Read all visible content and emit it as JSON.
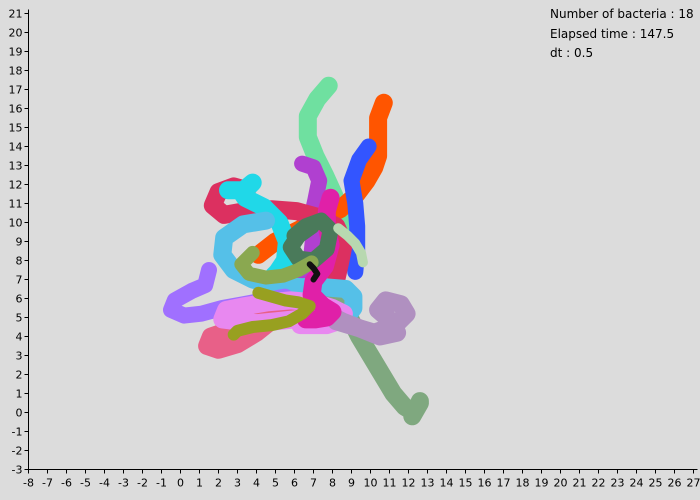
{
  "hud": {
    "bacteria_label": "Number of bacteria : 18",
    "time_label": "Elapsed time : 147.5",
    "dt_label": "dt : 0.5"
  },
  "colors": {
    "background": "#dcdcdc",
    "axis": "#000000"
  },
  "chart_data": {
    "type": "line",
    "title": "",
    "xlabel": "",
    "ylabel": "",
    "xlim": [
      -8,
      27
    ],
    "ylim": [
      -3,
      21
    ],
    "grid": false,
    "x_ticks": [
      -8,
      -7,
      -6,
      -5,
      -4,
      -3,
      -2,
      -1,
      0,
      1,
      2,
      3,
      4,
      5,
      6,
      7,
      8,
      9,
      10,
      11,
      12,
      13,
      14,
      15,
      16,
      17,
      18,
      19,
      20,
      21,
      22,
      23,
      24,
      25,
      26,
      27
    ],
    "y_ticks": [
      -3,
      -2,
      -1,
      0,
      1,
      2,
      3,
      4,
      5,
      6,
      7,
      8,
      9,
      10,
      11,
      12,
      13,
      14,
      15,
      16,
      17,
      18,
      19,
      20,
      21
    ],
    "series": [
      {
        "color": "#7fa87f",
        "width": 18,
        "x": [
          6.8,
          7.4,
          8.0,
          8.6,
          9.0,
          9.4,
          10.0,
          10.6,
          11.2,
          11.8,
          12.3,
          12.6,
          12.2,
          12.6
        ],
        "y": [
          7.5,
          6.8,
          6.2,
          5.6,
          4.8,
          4.0,
          3.0,
          2.0,
          1.0,
          0.3,
          0.0,
          0.5,
          -0.2,
          0.6
        ]
      },
      {
        "color": "#6fe0a0",
        "width": 18,
        "x": [
          7.8,
          7.2,
          6.7,
          6.7,
          7.1,
          7.6,
          8.1,
          8.5,
          8.7,
          8.7
        ],
        "y": [
          17.2,
          16.5,
          15.6,
          14.5,
          13.5,
          12.5,
          11.4,
          10.3,
          9.2,
          8.0
        ]
      },
      {
        "color": "#ff5500",
        "width": 18,
        "x": [
          10.7,
          10.4,
          10.4,
          10.4,
          10.2,
          9.8,
          9.2,
          8.4,
          7.4,
          6.2,
          5.0,
          4.1
        ],
        "y": [
          16.3,
          15.5,
          14.5,
          13.5,
          12.9,
          12.2,
          11.4,
          10.7,
          10.2,
          9.6,
          9.0,
          8.3
        ]
      },
      {
        "color": "#3355ff",
        "width": 16,
        "x": [
          9.9,
          9.4,
          9.0,
          9.2,
          9.3,
          9.3,
          9.2
        ],
        "y": [
          14.0,
          13.3,
          12.2,
          11.0,
          9.8,
          8.5,
          7.4
        ]
      },
      {
        "color": "#b040d0",
        "width": 16,
        "x": [
          6.4,
          7.0,
          7.3,
          7.1,
          6.9,
          7.0,
          6.9,
          6.6,
          6.1,
          5.6
        ],
        "y": [
          13.1,
          12.9,
          12.2,
          11.2,
          10.3,
          9.4,
          8.4,
          7.6,
          7.1,
          6.8
        ]
      },
      {
        "color": "#dc3060",
        "width": 18,
        "x": [
          3.5,
          2.8,
          2.0,
          1.7,
          2.3,
          3.4,
          4.8,
          6.1,
          7.2,
          8.2,
          8.6,
          8.4,
          8.2
        ],
        "y": [
          11.7,
          11.9,
          11.6,
          10.9,
          10.4,
          10.6,
          10.7,
          10.6,
          10.3,
          9.8,
          8.9,
          7.9,
          7.0
        ]
      },
      {
        "color": "#20d8e8",
        "width": 18,
        "x": [
          2.5,
          3.4,
          3.8,
          3.2,
          3.4,
          4.4,
          5.2,
          5.6,
          5.5,
          5.1,
          4.9
        ],
        "y": [
          11.7,
          11.7,
          12.1,
          11.6,
          11.3,
          10.8,
          10.0,
          9.0,
          8.0,
          7.4,
          7.2
        ]
      },
      {
        "color": "#55c0e8",
        "width": 18,
        "x": [
          4.5,
          3.3,
          2.3,
          2.2,
          2.8,
          3.8,
          5.0,
          6.3,
          7.5,
          8.7,
          9.1,
          9.1,
          8.8,
          8.2,
          7.1,
          6.0,
          5.0
        ],
        "y": [
          10.1,
          9.9,
          9.2,
          8.3,
          7.5,
          7.0,
          6.7,
          6.6,
          6.6,
          6.5,
          6.1,
          5.5,
          5.1,
          5.0,
          5.2,
          5.5,
          5.6
        ]
      },
      {
        "color": "#a070ff",
        "width": 16,
        "x": [
          1.5,
          1.3,
          0.6,
          -0.3,
          -0.5,
          0.2,
          1.1,
          2.2,
          3.3,
          4.4,
          5.5
        ],
        "y": [
          7.5,
          6.7,
          6.4,
          5.9,
          5.4,
          5.1,
          5.2,
          5.5,
          5.7,
          5.9,
          6.1
        ]
      },
      {
        "color": "#e86088",
        "width": 18,
        "x": [
          5.2,
          4.4,
          3.5,
          2.5,
          1.6,
          1.4,
          2.0,
          3.0,
          4.0,
          5.0,
          6.0
        ],
        "y": [
          5.4,
          5.0,
          4.6,
          4.3,
          4.0,
          3.5,
          3.3,
          3.6,
          4.2,
          5.0,
          5.6
        ]
      },
      {
        "color": "#e888f0",
        "width": 18,
        "x": [
          7.1,
          6.0,
          5.0,
          4.0,
          3.0,
          2.2,
          2.4,
          3.4,
          4.6,
          5.8,
          7.0,
          8.0,
          8.6,
          8.3,
          7.7,
          6.3
        ],
        "y": [
          5.0,
          4.9,
          4.8,
          4.7,
          4.8,
          4.9,
          5.4,
          5.6,
          5.8,
          5.9,
          5.8,
          5.5,
          5.2,
          4.8,
          4.6,
          4.6
        ]
      },
      {
        "color": "#b090c0",
        "width": 18,
        "x": [
          7.7,
          8.5,
          9.5,
          10.5,
          11.4,
          11.1,
          10.4,
          10.8,
          11.6,
          11.9,
          11.3,
          10.2,
          9.2,
          8.2
        ],
        "y": [
          5.2,
          4.8,
          4.4,
          4.0,
          4.2,
          4.8,
          5.4,
          5.9,
          5.7,
          5.2,
          4.6,
          4.2,
          4.5,
          4.8
        ]
      },
      {
        "color": "#e020a8",
        "width": 18,
        "x": [
          7.9,
          7.7,
          7.7,
          7.9,
          7.6,
          7.0,
          6.9,
          7.5,
          8.0,
          7.7,
          7.1,
          6.6
        ],
        "y": [
          11.3,
          10.6,
          9.8,
          8.8,
          7.7,
          6.9,
          6.2,
          5.6,
          5.3,
          5.0,
          4.9,
          4.9
        ]
      },
      {
        "color": "#4a7a5a",
        "width": 16,
        "x": [
          6.0,
          6.6,
          7.4,
          7.9,
          7.7,
          7.0,
          6.2,
          5.8,
          6.2,
          6.9
        ],
        "y": [
          9.3,
          9.8,
          10.1,
          9.6,
          8.6,
          8.0,
          8.1,
          8.7,
          9.3,
          9.8
        ]
      },
      {
        "color": "#8aa850",
        "width": 14,
        "x": [
          3.8,
          3.2,
          3.6,
          4.5,
          5.4,
          6.2,
          6.9
        ],
        "y": [
          8.4,
          7.8,
          7.3,
          7.1,
          7.2,
          7.5,
          7.9
        ]
      },
      {
        "color": "#98a020",
        "width": 12,
        "x": [
          4.1,
          4.8,
          5.5,
          6.2,
          6.8,
          6.4,
          5.7,
          4.8,
          3.8,
          3.0,
          2.8
        ],
        "y": [
          6.3,
          6.1,
          5.9,
          5.8,
          5.6,
          5.2,
          4.8,
          4.6,
          4.5,
          4.3,
          4.1
        ]
      },
      {
        "color": "#111111",
        "width": 6,
        "x": [
          6.8,
          7.0,
          7.2,
          7.0
        ],
        "y": [
          7.8,
          7.6,
          7.3,
          7.0
        ]
      },
      {
        "color": "#b8d8b0",
        "width": 10,
        "x": [
          8.3,
          8.8,
          9.2,
          9.5,
          9.6
        ],
        "y": [
          9.7,
          9.3,
          8.9,
          8.4,
          7.9
        ]
      }
    ]
  }
}
